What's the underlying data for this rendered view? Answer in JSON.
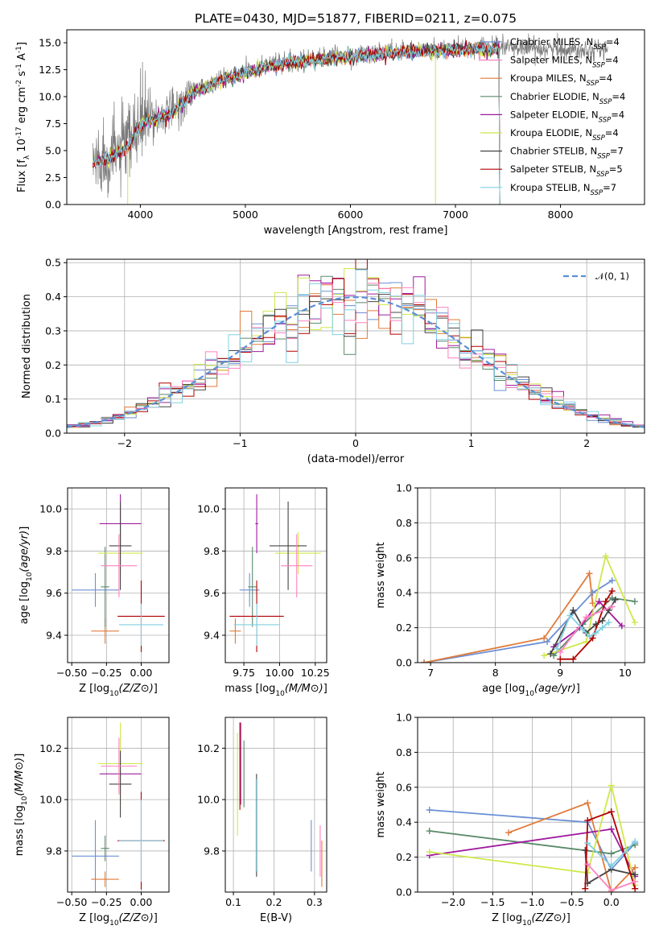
{
  "figure_title": "PLATE=0430, MJD=51877, FIBERID=0211, z=0.075",
  "model_colors": [
    "#6b8fd6",
    "#e07b39",
    "#5a8a6a",
    "#a01a9e",
    "#cfe84a",
    "#444444",
    "#b00000",
    "#ff80c0",
    "#80d0e0"
  ],
  "chart_data": [
    {
      "id": "spectrum",
      "type": "line",
      "title": "PLATE=0430, MJD=51877, FIBERID=0211, z=0.075",
      "xlabel": "wavelength [Angstrom, rest frame]",
      "ylabel": "Flux [f_λ 10^-17 erg cm^-2 s^-1 A^-1]",
      "xlim": [
        3300,
        8800
      ],
      "ylim": [
        0,
        16.2
      ],
      "xticks": [
        "4000",
        "5000",
        "6000",
        "7000",
        "8000"
      ],
      "yticks": [
        "0.0",
        "2.5",
        "5.0",
        "7.5",
        "10.0",
        "12.5",
        "15.0"
      ],
      "grid": false,
      "legend_position": "right",
      "continuum_x": [
        3550,
        3700,
        3900,
        4000,
        4100,
        4300,
        4500,
        4800,
        5000,
        5200,
        5500,
        6000,
        6500,
        7000,
        7500,
        8000,
        8500
      ],
      "continuum_y": [
        4.0,
        4.5,
        5.6,
        7.6,
        8.0,
        8.6,
        10.5,
        11.8,
        12.3,
        13.0,
        13.4,
        13.9,
        14.3,
        14.5,
        14.6,
        14.4,
        14.4
      ],
      "data_x_range": [
        3550,
        8450
      ],
      "model_x_range": [
        3550,
        7420
      ],
      "series": [
        {
          "name": "Chabrier MILES, N_SSP=4",
          "color": "#6b8fd6"
        },
        {
          "name": "Salpeter MILES, N_SSP=4",
          "color": "#ff80c0"
        },
        {
          "name": "Kroupa MILES, N_SSP=4",
          "color": "#e07b39"
        },
        {
          "name": "Chabrier ELODIE, N_SSP=4",
          "color": "#5a8a6a"
        },
        {
          "name": "Salpeter ELODIE, N_SSP=4",
          "color": "#a01a9e"
        },
        {
          "name": "Kroupa ELODIE, N_SSP=4",
          "color": "#cfe84a"
        },
        {
          "name": "Chabrier STELIB, N_SSP=7",
          "color": "#444444"
        },
        {
          "name": "Salpeter STELIB, N_SSP=5",
          "color": "#b00000"
        },
        {
          "name": "Kroupa STELIB, N_SSP=7",
          "color": "#80d0e0"
        }
      ],
      "legend": [
        {
          "prefix": "Chabrier MILES, N",
          "sub": "SSP",
          "suffix": "=4"
        },
        {
          "prefix": "Salpeter MILES, N",
          "sub": "SSP",
          "suffix": "=4"
        },
        {
          "prefix": "Kroupa MILES, N",
          "sub": "SSP",
          "suffix": "=4"
        },
        {
          "prefix": "Chabrier ELODIE, N",
          "sub": "SSP",
          "suffix": "=4"
        },
        {
          "prefix": "Salpeter ELODIE, N",
          "sub": "SSP",
          "suffix": "=4"
        },
        {
          "prefix": "Kroupa ELODIE, N",
          "sub": "SSP",
          "suffix": "=4"
        },
        {
          "prefix": "Chabrier STELIB, N",
          "sub": "SSP",
          "suffix": "=7"
        },
        {
          "prefix": "Salpeter STELIB, N",
          "sub": "SSP",
          "suffix": "=5"
        },
        {
          "prefix": "Kroupa STELIB, N",
          "sub": "SSP",
          "suffix": "=7"
        }
      ]
    },
    {
      "id": "residuals",
      "type": "area",
      "xlabel": "(data-model)/error",
      "ylabel": "Normed distribution",
      "xlim": [
        -2.5,
        2.5
      ],
      "ylim": [
        0,
        0.51
      ],
      "xticks": [
        "−2",
        "−1",
        "0",
        "1",
        "2"
      ],
      "yticks": [
        "0.0",
        "0.1",
        "0.2",
        "0.3",
        "0.4",
        "0.5"
      ],
      "grid": true,
      "bin_width": 0.1,
      "gaussian_label": "𝒩(0, 1)",
      "legend_position": "top-right"
    },
    {
      "id": "z-age",
      "type": "scatter",
      "xlabel": "Z [log10(Z/Z⊙)]",
      "ylabel": "age [log10(age/yr)]",
      "xlim": [
        -0.53,
        0.2
      ],
      "ylim": [
        9.27,
        10.1
      ],
      "xticks": [
        "−0.50",
        "−0.25",
        "0.00"
      ],
      "yticks": [
        "9.4",
        "9.6",
        "9.8",
        "10.0"
      ],
      "grid": true,
      "points": [
        {
          "x": -0.33,
          "y": 9.615,
          "xerr": 0.17,
          "yerr": 0.08
        },
        {
          "x": -0.26,
          "y": 9.42,
          "xerr": 0.1,
          "yerr": 0.06
        },
        {
          "x": -0.26,
          "y": 9.63,
          "xerr": 0.03,
          "yerr": 0.19
        },
        {
          "x": -0.15,
          "y": 9.93,
          "xerr": 0.15,
          "yerr": 0.14
        },
        {
          "x": -0.15,
          "y": 9.79,
          "xerr": 0.16,
          "yerr": 0.1
        },
        {
          "x": -0.15,
          "y": 9.825,
          "xerr": 0.08,
          "yerr": 0.21
        },
        {
          "x": 0.0,
          "y": 9.49,
          "xerr": 0.17,
          "yerr": 0.17
        },
        {
          "x": -0.16,
          "y": 9.73,
          "xerr": 0.13,
          "yerr": 0.15
        },
        {
          "x": 0.0,
          "y": 9.45,
          "xerr": 0.16,
          "yerr": 0.1
        }
      ]
    },
    {
      "id": "mass-age",
      "type": "scatter",
      "xlabel": "mass [log10(M/M⊙)]",
      "ylabel": "",
      "xlim": [
        9.62,
        10.33
      ],
      "ylim": [
        9.27,
        10.1
      ],
      "xticks": [
        "9.75",
        "10.00",
        "10.25"
      ],
      "yticks": [
        "9.4",
        "9.6",
        "9.8",
        "10.0"
      ],
      "grid": true,
      "points": [
        {
          "x": 9.79,
          "y": 9.615,
          "xerr": 0.07,
          "yerr": 0.08
        },
        {
          "x": 9.69,
          "y": 9.42,
          "xerr": 0.04,
          "yerr": 0.06
        },
        {
          "x": 9.81,
          "y": 9.63,
          "xerr": 0.03,
          "yerr": 0.19
        },
        {
          "x": 9.84,
          "y": 9.93,
          "xerr": 0.01,
          "yerr": 0.14
        },
        {
          "x": 10.13,
          "y": 9.79,
          "xerr": 0.16,
          "yerr": 0.1
        },
        {
          "x": 10.06,
          "y": 9.825,
          "xerr": 0.13,
          "yerr": 0.21
        },
        {
          "x": 9.84,
          "y": 9.49,
          "xerr": 0.19,
          "yerr": 0.17
        },
        {
          "x": 10.12,
          "y": 9.73,
          "xerr": 0.11,
          "yerr": 0.15
        },
        {
          "x": 9.84,
          "y": 9.45,
          "xerr": 0.16,
          "yerr": 0.1
        }
      ]
    },
    {
      "id": "age-weight",
      "type": "line",
      "xlabel": "age [log10(age/yr)]",
      "ylabel": "mass weight",
      "xlim": [
        6.8,
        10.3
      ],
      "ylim": [
        0,
        1
      ],
      "xticks": [
        "7",
        "8",
        "9",
        "10"
      ],
      "yticks": [
        "0.0",
        "0.2",
        "0.4",
        "0.6",
        "0.8",
        "1.0"
      ],
      "grid": true,
      "series": [
        {
          "x": [
            6.9,
            8.8,
            9.5,
            9.8
          ],
          "y": [
            0.0,
            0.12,
            0.4,
            0.47
          ]
        },
        {
          "x": [
            6.9,
            8.75,
            9.45,
            9.5
          ],
          "y": [
            0.0,
            0.14,
            0.51,
            0.34
          ]
        },
        {
          "x": [
            8.9,
            9.35,
            9.8,
            10.15
          ],
          "y": [
            0.04,
            0.22,
            0.37,
            0.35
          ]
        },
        {
          "x": [
            8.9,
            9.3,
            9.6,
            9.95
          ],
          "y": [
            0.09,
            0.2,
            0.35,
            0.21
          ]
        },
        {
          "x": [
            8.75,
            9.4,
            9.7,
            10.15
          ],
          "y": [
            0.04,
            0.12,
            0.61,
            0.23
          ]
        },
        {
          "x": [
            8.85,
            9.2,
            9.4,
            9.55,
            9.65,
            9.75,
            9.85
          ],
          "y": [
            0.05,
            0.3,
            0.17,
            0.22,
            0.24,
            0.3,
            0.36
          ]
        },
        {
          "x": [
            9.0,
            9.2,
            9.5,
            9.7,
            9.8
          ],
          "y": [
            0.02,
            0.02,
            0.14,
            0.35,
            0.41
          ]
        },
        {
          "x": [
            9.0,
            9.4,
            9.8
          ],
          "y": [
            0.06,
            0.26,
            0.32
          ]
        },
        {
          "x": [
            8.95,
            9.15,
            9.35,
            9.45,
            9.55,
            9.65,
            9.75
          ],
          "y": [
            0.08,
            0.27,
            0.19,
            0.15,
            0.17,
            0.2,
            0.23
          ]
        }
      ]
    },
    {
      "id": "z-mass",
      "type": "scatter",
      "xlabel": "Z [log10(Z/Z⊙)]",
      "ylabel": "mass [log10(M/M⊙)]",
      "xlim": [
        -0.53,
        0.2
      ],
      "ylim": [
        9.64,
        10.32
      ],
      "xticks": [
        "−0.50",
        "−0.25",
        "0.00"
      ],
      "yticks": [
        "9.8",
        "10.0",
        "10.2"
      ],
      "grid": true,
      "points": [
        {
          "x": -0.33,
          "y": 9.78,
          "xerr": 0.17,
          "yerr": 0.14
        },
        {
          "x": -0.26,
          "y": 9.69,
          "xerr": 0.1,
          "yerr": 0.03
        },
        {
          "x": -0.26,
          "y": 9.81,
          "xerr": 0.03,
          "yerr": 0.05
        },
        {
          "x": -0.15,
          "y": 10.1,
          "xerr": 0.15,
          "yerr": 0.01
        },
        {
          "x": -0.15,
          "y": 10.14,
          "xerr": 0.16,
          "yerr": 0.16
        },
        {
          "x": -0.15,
          "y": 10.06,
          "xerr": 0.08,
          "yerr": 0.13
        },
        {
          "x": 0.0,
          "y": 9.84,
          "xerr": 0.17,
          "yerr": 0.19
        },
        {
          "x": -0.16,
          "y": 10.13,
          "xerr": 0.13,
          "yerr": 0.11
        },
        {
          "x": 0.0,
          "y": 9.84,
          "xerr": 0.16,
          "yerr": 0.16
        }
      ]
    },
    {
      "id": "ebv-mass",
      "type": "scatter",
      "xlabel": "E(B-V)",
      "ylabel": "",
      "xlim": [
        0.08,
        0.33
      ],
      "ylim": [
        9.64,
        10.32
      ],
      "xticks": [
        "0.1",
        "0.2",
        "0.3"
      ],
      "yticks": [
        "9.8",
        "10.0",
        "10.2"
      ],
      "grid": true,
      "points": [
        {
          "x": 0.292,
          "y": 9.82,
          "xerr": 0,
          "yerr": 0.1
        },
        {
          "x": 0.318,
          "y": 9.75,
          "xerr": 0,
          "yerr": 0.09
        },
        {
          "x": 0.126,
          "y": 10.1,
          "xerr": 0,
          "yerr": 0.13
        },
        {
          "x": 0.118,
          "y": 10.14,
          "xerr": 0,
          "yerr": 0.16
        },
        {
          "x": 0.11,
          "y": 10.06,
          "xerr": 0,
          "yerr": 0.2
        },
        {
          "x": 0.157,
          "y": 9.9,
          "xerr": 0,
          "yerr": 0.2
        },
        {
          "x": 0.116,
          "y": 10.13,
          "xerr": 0,
          "yerr": 0.17
        },
        {
          "x": 0.314,
          "y": 9.8,
          "xerr": 0,
          "yerr": 0.1
        },
        {
          "x": 0.156,
          "y": 9.9,
          "xerr": 0,
          "yerr": 0.18
        }
      ]
    },
    {
      "id": "z-weight",
      "type": "line",
      "xlabel": "Z [log10(Z/Z⊙)]",
      "ylabel": "mass weight",
      "xlim": [
        -2.45,
        0.42
      ],
      "ylim": [
        0,
        1
      ],
      "xticks": [
        "−2.0",
        "−1.5",
        "−1.0",
        "−0.5",
        "0.0"
      ],
      "yticks": [
        "0.0",
        "0.2",
        "0.4",
        "0.6",
        "0.8",
        "1.0"
      ],
      "grid": true,
      "series": [
        {
          "x": [
            -2.3,
            -0.3,
            0.0,
            0.3
          ],
          "y": [
            0.47,
            0.4,
            0.13,
            0.28
          ]
        },
        {
          "x": [
            -1.3,
            -0.3,
            0.0,
            0.3
          ],
          "y": [
            0.34,
            0.51,
            0.0,
            0.14
          ]
        },
        {
          "x": [
            -2.3,
            0.0,
            0.3
          ],
          "y": [
            0.35,
            0.22,
            0.27
          ]
        },
        {
          "x": [
            -2.3,
            0.0,
            0.3
          ],
          "y": [
            0.21,
            0.36,
            0.09
          ]
        },
        {
          "x": [
            -2.3,
            -0.3,
            0.0,
            0.3
          ],
          "y": [
            0.23,
            0.11,
            0.61,
            0.04
          ]
        },
        {
          "x": [
            -0.33,
            -0.3,
            0.0,
            0.3
          ],
          "y": [
            0.24,
            0.05,
            0.13,
            0.1
          ]
        },
        {
          "x": [
            -0.33,
            -0.3,
            0.0,
            0.3
          ],
          "y": [
            0.02,
            0.41,
            0.46,
            0.02
          ]
        },
        {
          "x": [
            -0.3,
            0.0,
            0.3
          ],
          "y": [
            0.16,
            0.01,
            0.06
          ]
        },
        {
          "x": [
            -0.3,
            0.0,
            0.3
          ],
          "y": [
            0.28,
            0.15,
            0.29
          ]
        }
      ]
    }
  ]
}
